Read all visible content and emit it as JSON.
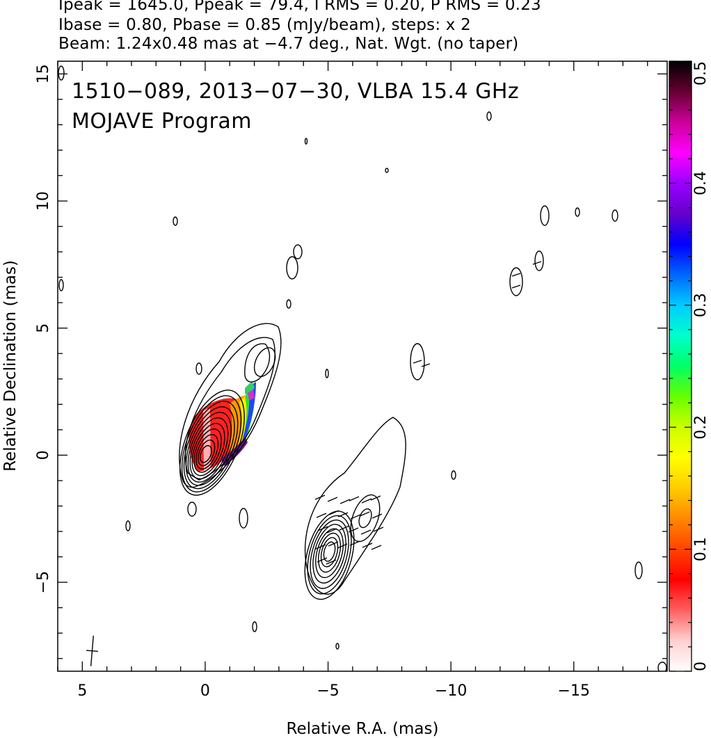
{
  "header": {
    "line1": "Ipeak = 1645.0, Ppeak = 79.4, I RMS = 0.20, P RMS = 0.23",
    "line2": "Ibase = 0.80, Pbase = 0.85 (mJy/beam), steps: x 2",
    "line3": "Beam: 1.24x0.48 mas at −4.7 deg., Nat. Wgt. (no taper)"
  },
  "chart_data": {
    "type": "heatmap",
    "title": "1510−089, 2013−07−30, VLBA 15.4 GHz",
    "subtitle": "MOJAVE Program",
    "xlabel": "Relative R.A. (mas)",
    "ylabel": "Relative Declination (mas)",
    "xlim": [
      6,
      -18.8
    ],
    "ylim": [
      -8.5,
      15.5
    ],
    "x_ticks": [
      5,
      0,
      -5,
      -10,
      -15
    ],
    "x_tick_labels": [
      "5",
      "0",
      "−5",
      "−10",
      "−15"
    ],
    "y_ticks": [
      15,
      10,
      5,
      0,
      -5
    ],
    "y_tick_labels": [
      "15",
      "10",
      "5",
      "0",
      "−5"
    ],
    "colorbar": {
      "range": [
        0,
        0.5
      ],
      "ticks": [
        0,
        0.1,
        0.2,
        0.3,
        0.4,
        0.5
      ],
      "tick_labels": [
        "0",
        "0.1",
        "0.2",
        "0.3",
        "0.4",
        "0.5"
      ],
      "colors": [
        "#ffffff",
        "#ffd0d0",
        "#ff6060",
        "#ff0000",
        "#ff4400",
        "#ff8800",
        "#ffcc00",
        "#ffff00",
        "#ccff00",
        "#66ff00",
        "#00ff66",
        "#00ffcc",
        "#00ccff",
        "#0066ff",
        "#0000ff",
        "#6600cc",
        "#9900ff",
        "#ff00ff",
        "#cc0099",
        "#660033",
        "#000000"
      ]
    },
    "core": {
      "x": 0,
      "y": 0
    },
    "core_contour_levels": 11,
    "jet_component": {
      "x": -2.2,
      "y": 3.8
    },
    "sw_component": {
      "x": -5.0,
      "y": -3.5
    },
    "beam_marker": {
      "x": 4.6,
      "y": -7.7,
      "major": 1.24,
      "minor": 0.48,
      "pa_deg": -4.7
    }
  }
}
